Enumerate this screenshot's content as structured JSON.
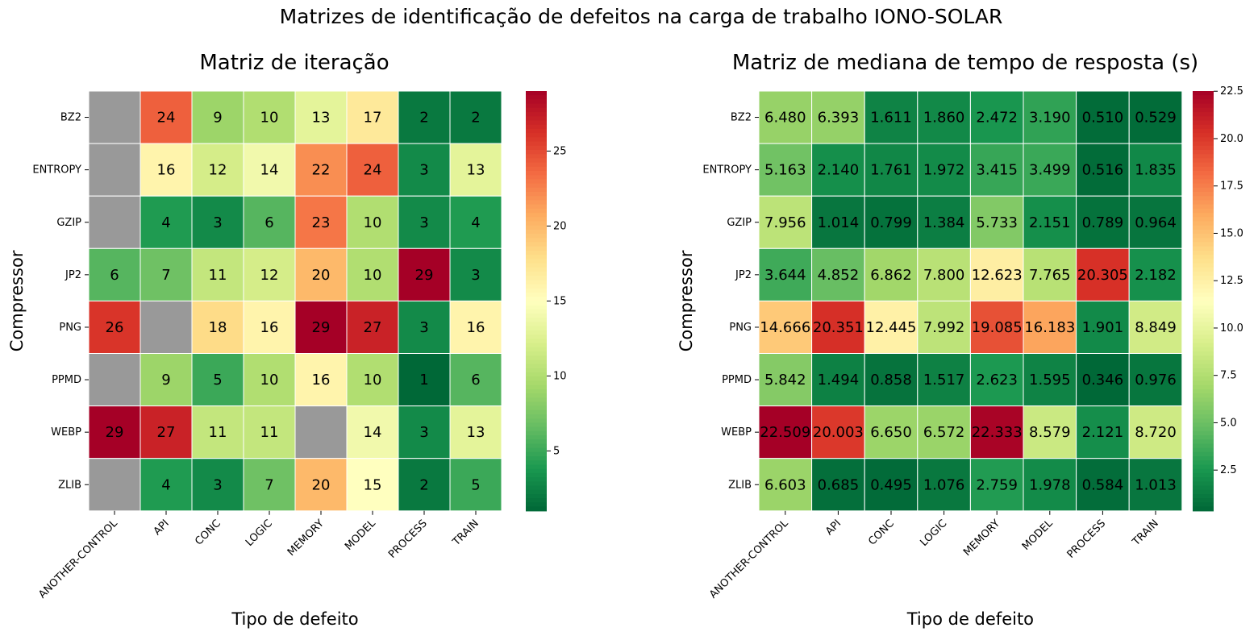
{
  "suptitle": "Matrizes de identificação de defeitos na carga de trabalho IONO-SOLAR",
  "chart_data": [
    {
      "type": "heatmap",
      "title": "Matriz de iteração",
      "xlabel": "Tipo de defeito",
      "ylabel": "Compressor",
      "x": [
        "ANOTHER-CONTROL",
        "API",
        "CONC",
        "LOGIC",
        "MEMORY",
        "MODEL",
        "PROCESS",
        "TRAIN"
      ],
      "y": [
        "BZ2",
        "ENTROPY",
        "GZIP",
        "JP2",
        "PNG",
        "PPMD",
        "WEBP",
        "ZLIB"
      ],
      "values": [
        [
          null,
          24,
          9,
          10,
          13,
          17,
          2,
          2
        ],
        [
          null,
          16,
          12,
          14,
          22,
          24,
          3,
          13
        ],
        [
          null,
          4,
          3,
          6,
          23,
          10,
          3,
          4
        ],
        [
          6,
          7,
          11,
          12,
          20,
          10,
          29,
          3
        ],
        [
          26,
          null,
          18,
          16,
          29,
          27,
          3,
          16
        ],
        [
          null,
          9,
          5,
          10,
          16,
          10,
          1,
          6
        ],
        [
          29,
          27,
          11,
          11,
          null,
          14,
          3,
          13
        ],
        [
          null,
          4,
          3,
          7,
          20,
          15,
          2,
          5
        ]
      ],
      "value_format": "int",
      "missing_color": "#999999",
      "colormap": "RdYlGn_r",
      "colorbar": {
        "range": [
          1,
          29
        ],
        "ticks": [
          5,
          10,
          15,
          20,
          25
        ],
        "tick_labels": [
          "5",
          "10",
          "15",
          "20",
          "25"
        ]
      },
      "legend": "colorbar-right"
    },
    {
      "type": "heatmap",
      "title": "Matriz de mediana de tempo de resposta (s)",
      "xlabel": "Tipo de defeito",
      "ylabel": "Compressor",
      "x": [
        "ANOTHER-CONTROL",
        "API",
        "CONC",
        "LOGIC",
        "MEMORY",
        "MODEL",
        "PROCESS",
        "TRAIN"
      ],
      "y": [
        "BZ2",
        "ENTROPY",
        "GZIP",
        "JP2",
        "PNG",
        "PPMD",
        "WEBP",
        "ZLIB"
      ],
      "values": [
        [
          6.48,
          6.393,
          1.611,
          1.86,
          2.472,
          3.19,
          0.51,
          0.529
        ],
        [
          5.163,
          2.14,
          1.761,
          1.972,
          3.415,
          3.499,
          0.516,
          1.835
        ],
        [
          7.956,
          1.014,
          0.799,
          1.384,
          5.733,
          2.151,
          0.789,
          0.964
        ],
        [
          3.644,
          4.852,
          6.862,
          7.8,
          12.623,
          7.765,
          20.305,
          2.182
        ],
        [
          14.666,
          20.351,
          12.445,
          7.992,
          19.085,
          16.183,
          1.901,
          8.849
        ],
        [
          5.842,
          1.494,
          0.858,
          1.517,
          2.623,
          1.595,
          0.346,
          0.976
        ],
        [
          22.509,
          20.003,
          6.65,
          6.572,
          22.333,
          8.579,
          2.121,
          8.72
        ],
        [
          6.603,
          0.685,
          0.495,
          1.076,
          2.759,
          1.978,
          0.584,
          1.013
        ]
      ],
      "value_format": "3dp",
      "missing_color": "#999999",
      "colormap": "RdYlGn_r",
      "colorbar": {
        "range": [
          0.346,
          22.509
        ],
        "ticks": [
          2.5,
          5,
          7.5,
          10,
          12.5,
          15,
          17.5,
          20,
          22.5
        ],
        "tick_labels": [
          "2.5",
          "5.0",
          "7.5",
          "10.0",
          "12.5",
          "15.0",
          "17.5",
          "20.0",
          "22.5"
        ]
      },
      "legend": "colorbar-right"
    }
  ]
}
